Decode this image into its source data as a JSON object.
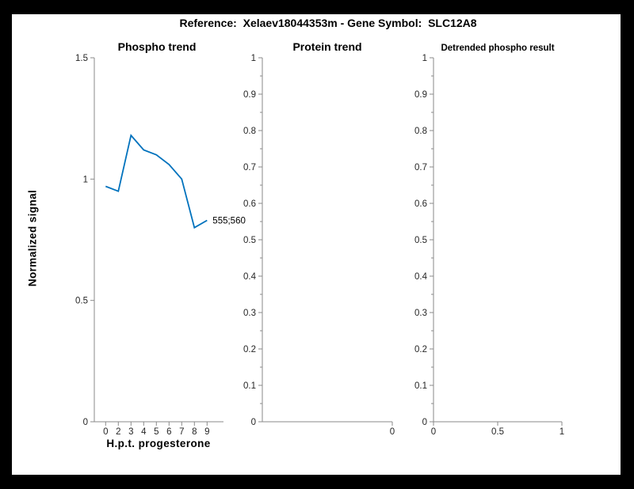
{
  "figure_title": "Reference:  Xelaev18044353m - Gene Symbol:  SLC12A8",
  "colors": {
    "line": "#0072BD",
    "axis": "#8a8a8a",
    "tick_label": "#262626",
    "title": "#000000",
    "figure_background": "#ffffff",
    "window_border": "#000000"
  },
  "chart_data": [
    {
      "type": "line",
      "title": "Phospho trend",
      "xlabel": "H.p.t. progesterone",
      "ylabel": "Normalized signal",
      "categories": [
        "0",
        "2",
        "3",
        "4",
        "5",
        "6",
        "7",
        "8",
        "9"
      ],
      "series": [
        {
          "name": "555;560",
          "values": [
            0.97,
            0.95,
            1.18,
            1.12,
            1.1,
            1.06,
            1.0,
            0.8,
            0.83
          ]
        }
      ],
      "end_label": "555;560",
      "ylim": [
        0,
        1.5
      ],
      "yticks": [
        0,
        0.5,
        1,
        1.5
      ],
      "ytick_labels": [
        "0",
        "0.5",
        "1",
        "1.5"
      ],
      "grid": false,
      "legend": "none",
      "line_color": "#0072BD"
    },
    {
      "type": "line",
      "title": "Protein trend",
      "xlabel": "",
      "ylabel": "",
      "categories": [],
      "series": [],
      "ylim": [
        0,
        1
      ],
      "yticks": [
        0,
        0.1,
        0.2,
        0.3,
        0.4,
        0.5,
        0.6,
        0.7,
        0.8,
        0.9,
        1
      ],
      "ytick_labels": [
        "0",
        "0.1",
        "0.2",
        "0.3",
        "0.4",
        "0.5",
        "0.6",
        "0.7",
        "0.8",
        "0.9",
        "1"
      ],
      "minor_yticks": true,
      "xticks_normalized": [
        1
      ],
      "xtick_labels": [
        "0"
      ],
      "grid": false
    },
    {
      "type": "line",
      "title": "Detrended phospho result",
      "xlabel": "",
      "ylabel": "",
      "series": [],
      "xlim": [
        0,
        1
      ],
      "ylim": [
        0,
        1
      ],
      "yticks": [
        0,
        0.1,
        0.2,
        0.3,
        0.4,
        0.5,
        0.6,
        0.7,
        0.8,
        0.9,
        1
      ],
      "ytick_labels": [
        "0",
        "0.1",
        "0.2",
        "0.3",
        "0.4",
        "0.5",
        "0.6",
        "0.7",
        "0.8",
        "0.9",
        "1"
      ],
      "minor_yticks": true,
      "xticks_normalized": [
        0,
        0.5,
        1
      ],
      "xtick_labels": [
        "0",
        "0.5",
        "1"
      ],
      "grid": false
    }
  ]
}
